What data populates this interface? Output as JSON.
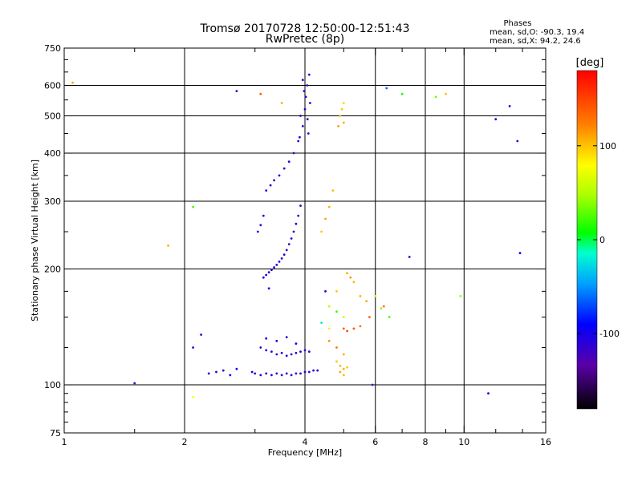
{
  "chart_data": {
    "type": "scatter",
    "title": "Tromsø 20170728 12:50:00-12:51:43",
    "subtitle": "RwPretec (8p)",
    "xlabel": "Frequency [MHz]",
    "ylabel": "Stationary phase Virtual Height [km]",
    "xscale": "log",
    "yscale": "log",
    "xlim": [
      1,
      16
    ],
    "ylim": [
      75,
      750
    ],
    "x_ticks": [
      1,
      2,
      4,
      6,
      8,
      10,
      16
    ],
    "x_tick_labels": [
      "1",
      "2",
      "4",
      "6",
      "8",
      "10",
      "16"
    ],
    "x_grid": [
      2,
      4,
      6,
      8,
      10
    ],
    "y_ticks": [
      75,
      100,
      200,
      300,
      400,
      500,
      600,
      750
    ],
    "y_tick_labels": [
      "75",
      "100",
      "200",
      "300",
      "400",
      "500",
      "600",
      "750"
    ],
    "y_grid": [
      100,
      200,
      300,
      400,
      500,
      600
    ],
    "grid": true,
    "legend": {
      "heading": "Phases",
      "line1": "mean, sd,O: -90.3, 19.4",
      "line2": "mean, sd,X:  94.2, 24.6",
      "placement": "top-right"
    },
    "colorbar": {
      "label": "[deg]",
      "range": [
        -180,
        180
      ],
      "ticks": [
        100,
        0,
        -100
      ],
      "tick_labels": [
        "100",
        "0",
        "-100"
      ],
      "placement": "right"
    },
    "series": [
      {
        "points": [
          [
            3.15,
            190,
            -110
          ],
          [
            3.2,
            193,
            -105
          ],
          [
            3.25,
            196,
            -112
          ],
          [
            3.3,
            199,
            -108
          ],
          [
            3.35,
            202,
            -110
          ],
          [
            3.4,
            205,
            -106
          ],
          [
            3.45,
            209,
            -112
          ],
          [
            3.5,
            213,
            -108
          ],
          [
            3.55,
            218,
            -110
          ],
          [
            3.6,
            224,
            -105
          ],
          [
            3.65,
            232,
            -108
          ],
          [
            3.7,
            240,
            -112
          ],
          [
            3.75,
            250,
            -110
          ],
          [
            3.8,
            262,
            -106
          ],
          [
            3.85,
            275,
            -109
          ],
          [
            3.9,
            292,
            -112
          ],
          [
            3.05,
            250,
            -110
          ],
          [
            3.1,
            260,
            -105
          ],
          [
            3.15,
            275,
            -112
          ],
          [
            3.2,
            320,
            -110
          ],
          [
            3.28,
            330,
            -108
          ],
          [
            3.35,
            340,
            -112
          ],
          [
            3.45,
            350,
            -106
          ],
          [
            3.55,
            365,
            -110
          ],
          [
            3.65,
            380,
            -108
          ],
          [
            3.75,
            400,
            -112
          ],
          [
            3.85,
            430,
            -109
          ],
          [
            3.95,
            470,
            -110
          ],
          [
            4.0,
            520,
            -106
          ],
          [
            4.02,
            560,
            -112
          ],
          [
            4.05,
            600,
            -108
          ],
          [
            3.95,
            620,
            -110
          ],
          [
            4.1,
            640,
            -112
          ],
          [
            3.9,
            500,
            -105
          ],
          [
            4.08,
            450,
            -110
          ],
          [
            3.98,
            580,
            -108
          ],
          [
            4.12,
            540,
            -112
          ],
          [
            3.88,
            440,
            -110
          ],
          [
            4.06,
            490,
            -106
          ],
          [
            2.95,
            108,
            -110
          ],
          [
            3.0,
            107,
            -112
          ],
          [
            3.1,
            106,
            -105
          ],
          [
            3.2,
            107,
            -110
          ],
          [
            3.3,
            106,
            -108
          ],
          [
            3.4,
            107,
            -112
          ],
          [
            3.5,
            106,
            -110
          ],
          [
            3.6,
            107,
            -106
          ],
          [
            3.7,
            106,
            -108
          ],
          [
            3.8,
            107,
            -112
          ],
          [
            3.9,
            107,
            -110
          ],
          [
            4.0,
            108,
            -105
          ],
          [
            4.1,
            108,
            -110
          ],
          [
            4.2,
            109,
            -112
          ],
          [
            4.3,
            109,
            -108
          ],
          [
            2.3,
            107,
            -110
          ],
          [
            2.4,
            108,
            -105
          ],
          [
            2.5,
            109,
            -112
          ],
          [
            2.6,
            106,
            -100
          ],
          [
            2.7,
            110,
            -90
          ],
          [
            3.1,
            125,
            -110
          ],
          [
            3.2,
            123,
            -105
          ],
          [
            3.3,
            122,
            -112
          ],
          [
            3.4,
            120,
            -110
          ],
          [
            3.5,
            121,
            -108
          ],
          [
            3.6,
            119,
            -112
          ],
          [
            3.7,
            120,
            -106
          ],
          [
            3.8,
            121,
            -110
          ],
          [
            3.9,
            122,
            -108
          ],
          [
            4.0,
            123,
            -112
          ],
          [
            4.1,
            122,
            -110
          ],
          [
            3.2,
            132,
            -100
          ],
          [
            3.4,
            130,
            -95
          ],
          [
            3.6,
            133,
            -105
          ],
          [
            3.8,
            128,
            -98
          ],
          [
            2.2,
            135,
            -110
          ],
          [
            2.1,
            125,
            -105
          ],
          [
            1.5,
            101,
            -120
          ],
          [
            4.5,
            175,
            -105
          ],
          [
            2.7,
            580,
            -100
          ],
          [
            12.0,
            490,
            -110
          ],
          [
            13.0,
            530,
            -112
          ],
          [
            13.6,
            430,
            -110
          ],
          [
            7.3,
            215,
            -115
          ],
          [
            11.5,
            95,
            -110
          ],
          [
            13.8,
            220,
            -100
          ],
          [
            5.9,
            100,
            -120
          ],
          [
            6.4,
            590,
            -60
          ],
          [
            3.25,
            178,
            -90
          ],
          [
            4.9,
            500,
            105
          ],
          [
            4.95,
            520,
            100
          ],
          [
            5.0,
            480,
            110
          ],
          [
            4.85,
            470,
            115
          ],
          [
            5.0,
            540,
            95
          ],
          [
            4.7,
            320,
            105
          ],
          [
            4.6,
            290,
            110
          ],
          [
            4.5,
            270,
            112
          ],
          [
            4.4,
            250,
            100
          ],
          [
            5.1,
            195,
            110
          ],
          [
            5.2,
            190,
            115
          ],
          [
            5.3,
            185,
            105
          ],
          [
            4.8,
            175,
            100
          ],
          [
            5.5,
            170,
            108
          ],
          [
            4.6,
            160,
            50
          ],
          [
            4.8,
            155,
            20
          ],
          [
            5.0,
            150,
            60
          ],
          [
            4.4,
            145,
            -20
          ],
          [
            4.6,
            140,
            70
          ],
          [
            5.0,
            140,
            140
          ],
          [
            5.1,
            138,
            150
          ],
          [
            5.3,
            140,
            145
          ],
          [
            5.5,
            142,
            130
          ],
          [
            4.6,
            130,
            120
          ],
          [
            4.8,
            125,
            130
          ],
          [
            5.0,
            120,
            110
          ],
          [
            4.8,
            115,
            100
          ],
          [
            4.9,
            112,
            105
          ],
          [
            5.0,
            110,
            108
          ],
          [
            5.1,
            111,
            100
          ],
          [
            4.9,
            108,
            112
          ],
          [
            5.0,
            106,
            105
          ],
          [
            5.8,
            150,
            140
          ],
          [
            6.2,
            158,
            40
          ],
          [
            6.0,
            170,
            60
          ],
          [
            6.5,
            150,
            20
          ],
          [
            5.7,
            165,
            110
          ],
          [
            6.3,
            160,
            130
          ],
          [
            9.0,
            570,
            100
          ],
          [
            8.5,
            560,
            30
          ],
          [
            7.0,
            570,
            10
          ],
          [
            9.8,
            170,
            40
          ],
          [
            2.1,
            93,
            80
          ],
          [
            1.82,
            230,
            110
          ],
          [
            1.05,
            610,
            110
          ],
          [
            3.5,
            540,
            110
          ],
          [
            3.1,
            570,
            140
          ],
          [
            2.1,
            290,
            20
          ]
        ]
      }
    ]
  }
}
